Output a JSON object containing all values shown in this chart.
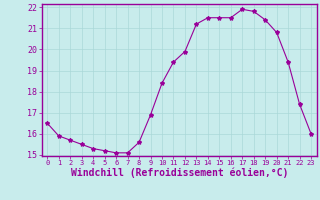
{
  "x": [
    0,
    1,
    2,
    3,
    4,
    5,
    6,
    7,
    8,
    9,
    10,
    11,
    12,
    13,
    14,
    15,
    16,
    17,
    18,
    19,
    20,
    21,
    22,
    23
  ],
  "y": [
    16.5,
    15.9,
    15.7,
    15.5,
    15.3,
    15.2,
    15.1,
    15.1,
    15.6,
    16.9,
    18.4,
    19.4,
    19.9,
    21.2,
    21.5,
    21.5,
    21.5,
    21.9,
    21.8,
    21.4,
    20.8,
    19.4,
    17.4,
    16.0
  ],
  "line_color": "#990099",
  "marker": "*",
  "marker_size": 3,
  "bg_color": "#c8ecec",
  "grid_color": "#aad8d8",
  "xlabel": "Windchill (Refroidissement éolien,°C)",
  "xlabel_color": "#990099",
  "tick_color": "#990099",
  "ylim": [
    15,
    22
  ],
  "xlim": [
    -0.5,
    23.5
  ],
  "yticks": [
    15,
    16,
    17,
    18,
    19,
    20,
    21,
    22
  ],
  "xticks": [
    0,
    1,
    2,
    3,
    4,
    5,
    6,
    7,
    8,
    9,
    10,
    11,
    12,
    13,
    14,
    15,
    16,
    17,
    18,
    19,
    20,
    21,
    22,
    23
  ],
  "spine_color": "#990099",
  "xlabel_fontsize": 7,
  "xtick_fontsize": 5,
  "ytick_fontsize": 6
}
